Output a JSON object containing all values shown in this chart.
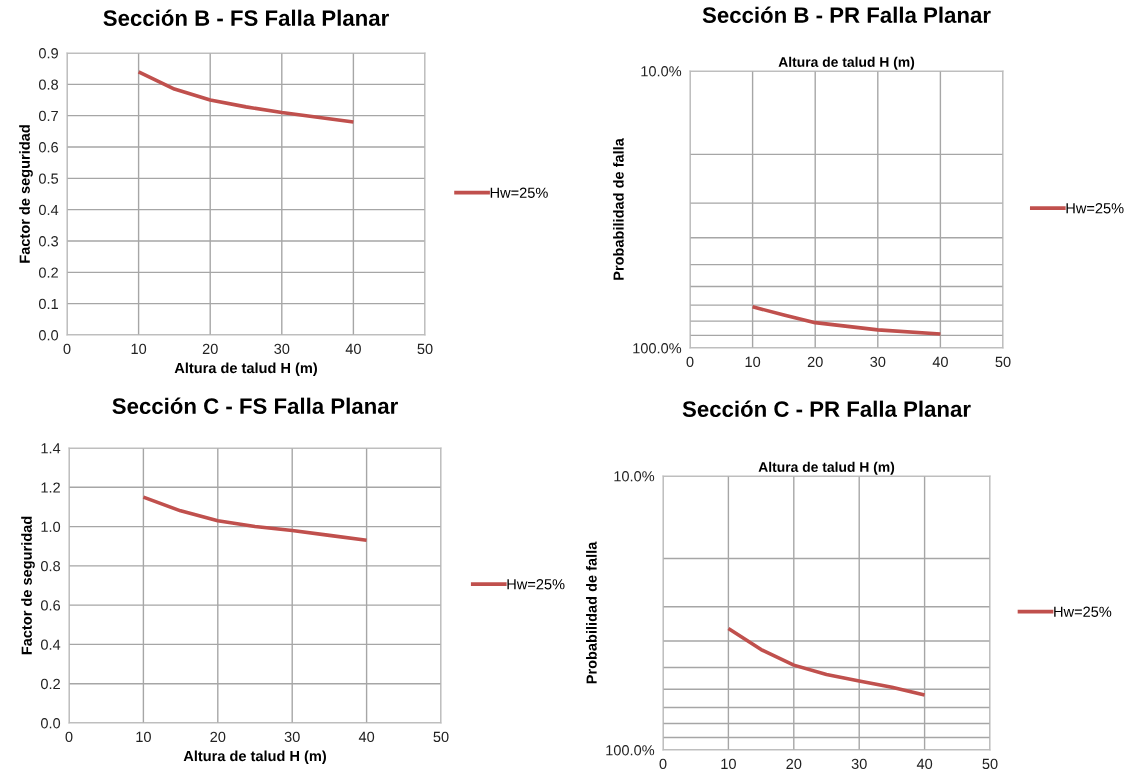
{
  "chart_data": [
    {
      "type": "line",
      "title": "Sección B - FS Falla Planar",
      "xlabel": "Altura de talud H (m)",
      "ylabel": "Factor de seguridad",
      "x": [
        10,
        15,
        20,
        25,
        30,
        35,
        40
      ],
      "series": [
        {
          "name": "Hw=25%",
          "color": "#c0504d",
          "values": [
            0.84,
            0.785,
            0.75,
            0.728,
            0.71,
            0.695,
            0.68
          ]
        }
      ],
      "xlim": [
        0,
        50
      ],
      "xticks": [
        0,
        10,
        20,
        30,
        40,
        50
      ],
      "ylim": [
        0,
        0.9
      ],
      "yticks": [
        {
          "value": 0,
          "label": "0.0"
        },
        0.1,
        0.2,
        0.3,
        0.4,
        0.5,
        0.6,
        0.7,
        0.8,
        0.9
      ],
      "grid": true,
      "legend": "right",
      "marker": "none",
      "line_style": "solid"
    },
    {
      "type": "line",
      "title": "Sección B - PR Falla Planar",
      "x2label": "Altura de talud H (m)",
      "ylabel": "Probabilidad de falla",
      "x": [
        10,
        15,
        20,
        30,
        40
      ],
      "series": [
        {
          "name": "Hw=25%",
          "color": "#c0504d",
          "values": [
            71,
            76,
            81,
            86,
            89
          ]
        }
      ],
      "xlim": [
        0,
        50
      ],
      "xticks": [
        0,
        10,
        20,
        30,
        40,
        50
      ],
      "log": "y",
      "ylim": [
        100,
        10
      ],
      "yticks": [
        {
          "value": 10,
          "label": "10.0%"
        },
        {
          "value": 20,
          "label": null
        },
        {
          "value": 30,
          "label": null
        },
        {
          "value": 40,
          "label": null
        },
        {
          "value": 50,
          "label": null
        },
        {
          "value": 60,
          "label": null
        },
        {
          "value": 70,
          "label": null
        },
        {
          "value": 80,
          "label": null
        },
        {
          "value": 90,
          "label": null
        },
        {
          "value": 100,
          "label": "100.0%"
        }
      ],
      "grid": true,
      "legend": "right",
      "marker": "none",
      "line_style": "solid"
    },
    {
      "type": "line",
      "title": "Sección C - FS Falla Planar",
      "xlabel": "Altura de talud H (m)",
      "ylabel": "Factor de seguridad",
      "x": [
        10,
        15,
        20,
        25,
        30,
        35,
        40
      ],
      "series": [
        {
          "name": "Hw=25%",
          "color": "#c0504d",
          "values": [
            1.15,
            1.08,
            1.03,
            1.0,
            0.98,
            0.955,
            0.93
          ]
        }
      ],
      "xlim": [
        0,
        50
      ],
      "xticks": [
        0,
        10,
        20,
        30,
        40,
        50
      ],
      "ylim": [
        0,
        1.4
      ],
      "yticks": [
        {
          "value": 0,
          "label": "0.0"
        },
        0.2,
        0.4,
        0.6,
        0.8,
        {
          "value": 1.0,
          "label": "1.0"
        },
        1.2,
        1.4
      ],
      "grid": true,
      "legend": "right",
      "marker": "none",
      "line_style": "solid"
    },
    {
      "type": "line",
      "title": "Sección C - PR Falla Planar",
      "x2label": "Altura de talud H (m)",
      "ylabel": "Probabilidad de falla",
      "x": [
        10,
        15,
        20,
        25,
        30,
        35,
        40
      ],
      "series": [
        {
          "name": "Hw=25%",
          "color": "#c0504d",
          "values": [
            36,
            43,
            49,
            53,
            56,
            59,
            63
          ]
        }
      ],
      "xlim": [
        0,
        50
      ],
      "xticks": [
        0,
        10,
        20,
        30,
        40,
        50
      ],
      "log": "y",
      "ylim": [
        100,
        10
      ],
      "yticks": [
        {
          "value": 10,
          "label": "10.0%"
        },
        {
          "value": 20,
          "label": null
        },
        {
          "value": 30,
          "label": null
        },
        {
          "value": 40,
          "label": null
        },
        {
          "value": 50,
          "label": null
        },
        {
          "value": 60,
          "label": null
        },
        {
          "value": 70,
          "label": null
        },
        {
          "value": 80,
          "label": null
        },
        {
          "value": 90,
          "label": null
        },
        {
          "value": 100,
          "label": "100.0%"
        }
      ],
      "grid": true,
      "legend": "right",
      "marker": "none",
      "line_style": "solid"
    }
  ]
}
